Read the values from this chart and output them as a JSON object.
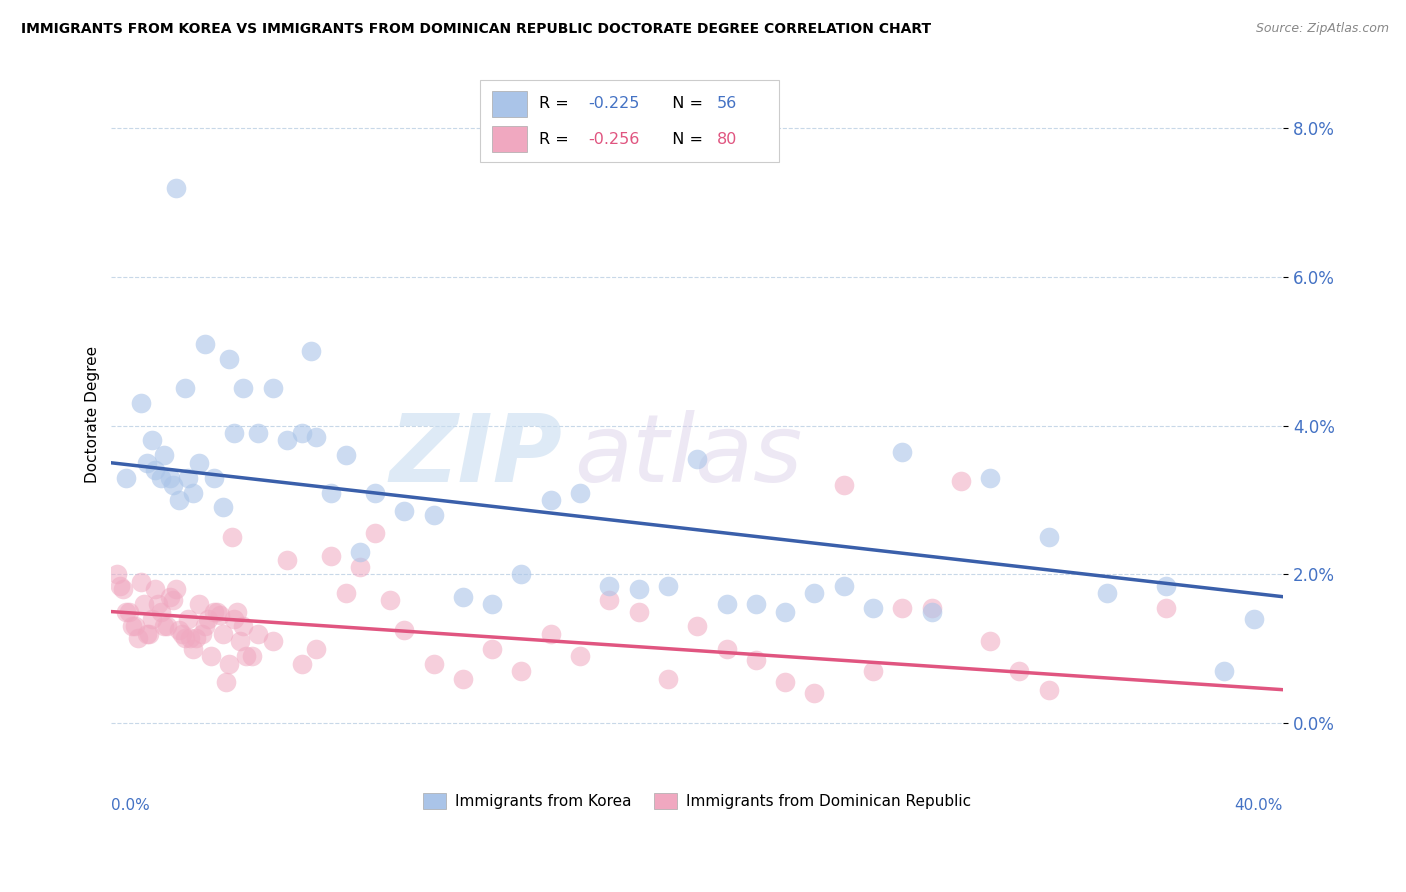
{
  "title": "IMMIGRANTS FROM KOREA VS IMMIGRANTS FROM DOMINICAN REPUBLIC DOCTORATE DEGREE CORRELATION CHART",
  "source": "Source: ZipAtlas.com",
  "ylabel": "Doctorate Degree",
  "ytick_values": [
    0.0,
    2.0,
    4.0,
    6.0,
    8.0
  ],
  "xlim": [
    0.0,
    40.0
  ],
  "ylim": [
    -0.5,
    8.8
  ],
  "legend_korea_r": "-0.225",
  "legend_korea_n": "56",
  "legend_dr_r": "-0.256",
  "legend_dr_n": "80",
  "legend_bottom_korea": "Immigrants from Korea",
  "legend_bottom_dr": "Immigrants from Dominican Republic",
  "korea_color": "#aac4e8",
  "dr_color": "#f0a8c0",
  "korea_line_color": "#3a5faa",
  "dr_line_color": "#e05580",
  "watermark_zip": "ZIP",
  "watermark_atlas": "atlas",
  "korea_trend_x0": 0.0,
  "korea_trend_y0": 3.5,
  "korea_trend_x1": 40.0,
  "korea_trend_y1": 1.7,
  "dr_trend_x0": 0.0,
  "dr_trend_y0": 1.5,
  "dr_trend_x1": 40.0,
  "dr_trend_y1": 0.45,
  "korea_scatter_x": [
    0.5,
    1.0,
    1.2,
    1.4,
    1.5,
    1.8,
    2.0,
    2.1,
    2.3,
    2.5,
    2.6,
    2.8,
    3.0,
    3.2,
    3.5,
    3.8,
    4.0,
    4.2,
    4.5,
    5.0,
    5.5,
    6.0,
    6.5,
    6.8,
    7.0,
    7.5,
    8.0,
    8.5,
    9.0,
    10.0,
    11.0,
    12.0,
    13.0,
    14.0,
    15.0,
    16.0,
    17.0,
    18.0,
    19.0,
    20.0,
    21.0,
    22.0,
    23.0,
    24.0,
    25.0,
    26.0,
    27.0,
    28.0,
    30.0,
    32.0,
    34.0,
    36.0,
    38.0,
    39.0,
    1.7,
    2.2
  ],
  "korea_scatter_y": [
    3.3,
    4.3,
    3.5,
    3.8,
    3.4,
    3.6,
    3.3,
    3.2,
    3.0,
    4.5,
    3.3,
    3.1,
    3.5,
    5.1,
    3.3,
    2.9,
    4.9,
    3.9,
    4.5,
    3.9,
    4.5,
    3.8,
    3.9,
    5.0,
    3.85,
    3.1,
    3.6,
    2.3,
    3.1,
    2.85,
    2.8,
    1.7,
    1.6,
    2.0,
    3.0,
    3.1,
    1.85,
    1.8,
    1.85,
    3.55,
    1.6,
    1.6,
    1.5,
    1.75,
    1.85,
    1.55,
    3.65,
    1.5,
    3.3,
    2.5,
    1.75,
    1.85,
    0.7,
    1.4,
    3.3,
    7.2
  ],
  "dr_scatter_x": [
    0.2,
    0.3,
    0.4,
    0.5,
    0.6,
    0.7,
    0.8,
    0.9,
    1.0,
    1.1,
    1.2,
    1.3,
    1.4,
    1.5,
    1.6,
    1.7,
    1.8,
    1.9,
    2.0,
    2.1,
    2.2,
    2.3,
    2.4,
    2.5,
    2.6,
    2.7,
    2.8,
    2.9,
    3.0,
    3.1,
    3.2,
    3.3,
    3.4,
    3.5,
    3.6,
    3.7,
    3.8,
    3.9,
    4.0,
    4.1,
    4.2,
    4.3,
    4.4,
    4.5,
    4.6,
    4.8,
    5.0,
    5.5,
    6.0,
    6.5,
    7.0,
    7.5,
    8.0,
    8.5,
    9.0,
    9.5,
    10.0,
    11.0,
    12.0,
    13.0,
    14.0,
    15.0,
    16.0,
    17.0,
    18.0,
    19.0,
    20.0,
    21.0,
    22.0,
    23.0,
    24.0,
    25.0,
    26.0,
    27.0,
    28.0,
    29.0,
    30.0,
    31.0,
    32.0,
    36.0
  ],
  "dr_scatter_y": [
    2.0,
    1.85,
    1.8,
    1.5,
    1.5,
    1.3,
    1.3,
    1.15,
    1.9,
    1.6,
    1.2,
    1.2,
    1.4,
    1.8,
    1.6,
    1.5,
    1.3,
    1.3,
    1.7,
    1.65,
    1.8,
    1.25,
    1.2,
    1.15,
    1.4,
    1.15,
    1.0,
    1.15,
    1.6,
    1.2,
    1.3,
    1.4,
    0.9,
    1.5,
    1.5,
    1.45,
    1.2,
    0.55,
    0.8,
    2.5,
    1.4,
    1.5,
    1.1,
    1.3,
    0.9,
    0.9,
    1.2,
    1.1,
    2.2,
    0.8,
    1.0,
    2.25,
    1.75,
    2.1,
    2.55,
    1.65,
    1.25,
    0.8,
    0.6,
    1.0,
    0.7,
    1.2,
    0.9,
    1.65,
    1.5,
    0.6,
    1.3,
    1.0,
    0.85,
    0.55,
    0.4,
    3.2,
    0.7,
    1.55,
    1.55,
    3.25,
    1.1,
    0.7,
    0.45,
    1.55
  ]
}
